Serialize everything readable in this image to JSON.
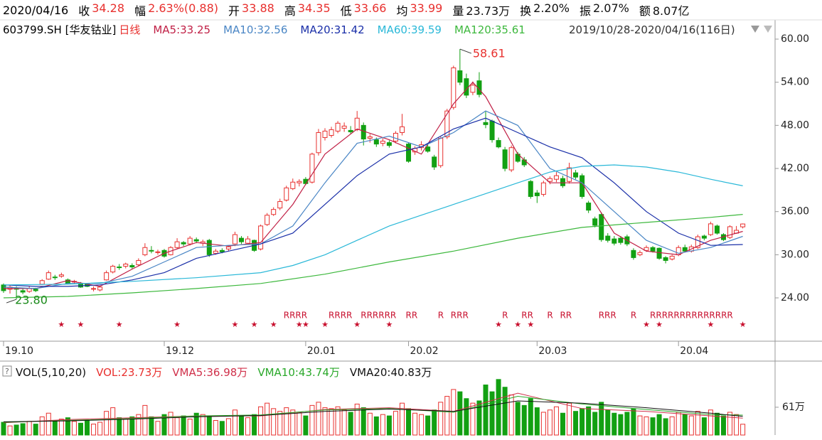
{
  "header": {
    "date": "2020/04/16",
    "fields": [
      {
        "label": "收",
        "value": "34.28",
        "up": true
      },
      {
        "label": "幅",
        "value": "2.63%(0.88)",
        "up": true
      },
      {
        "label": "开",
        "value": "33.88",
        "up": true
      },
      {
        "label": "高",
        "value": "34.35",
        "up": true
      },
      {
        "label": "低",
        "value": "33.66",
        "up": true
      },
      {
        "label": "均",
        "value": "33.99",
        "up": true
      },
      {
        "label": "量",
        "value": "23.73万",
        "up": false
      },
      {
        "label": "换",
        "value": "2.20%",
        "up": false
      },
      {
        "label": "振",
        "value": "2.07%",
        "up": false
      },
      {
        "label": "额",
        "value": "8.07亿",
        "up": false
      }
    ]
  },
  "chart_data": {
    "type": "candlestick",
    "symbol": "603799.SH [华友钴业]",
    "period": "日线",
    "range": "2019/10/28-2020/04/16(116日)",
    "up_color": "#e8312f",
    "down_color": "#12a012",
    "ylim": [
      17.97,
      61.09
    ],
    "yticks": [
      {
        "value": 24,
        "label": "24.00"
      },
      {
        "value": 30,
        "label": "30.00"
      },
      {
        "value": 36,
        "label": "36.00"
      },
      {
        "value": 42,
        "label": "42.00"
      },
      {
        "value": 48,
        "label": "48.00"
      },
      {
        "value": 54,
        "label": "54.00"
      },
      {
        "value": 60,
        "label": "60.00"
      }
    ],
    "xticks": [
      {
        "value": 0,
        "label": "19.10"
      },
      {
        "value": 25,
        "label": "19.12"
      },
      {
        "value": 47,
        "label": "20.01"
      },
      {
        "value": 63,
        "label": "20.02"
      },
      {
        "value": 83,
        "label": "20.03"
      },
      {
        "value": 105,
        "label": "20.04"
      }
    ],
    "candles": [
      [
        25.8,
        26.0,
        24.7,
        25.0
      ],
      [
        25.2,
        25.8,
        24.6,
        25.5
      ],
      [
        25.3,
        25.6,
        23.8,
        25.2
      ],
      [
        25.0,
        25.3,
        24.5,
        24.8
      ],
      [
        24.9,
        25.6,
        24.7,
        25.3
      ],
      [
        25.2,
        25.4,
        24.8,
        25.0
      ],
      [
        25.9,
        26.6,
        25.8,
        26.4
      ],
      [
        26.6,
        27.8,
        26.5,
        27.5
      ],
      [
        26.9,
        27.2,
        26.5,
        26.8
      ],
      [
        27.0,
        27.5,
        26.8,
        27.2
      ],
      [
        26.5,
        26.7,
        25.9,
        26.0
      ],
      [
        26.2,
        26.5,
        25.9,
        26.3
      ],
      [
        26.0,
        26.2,
        25.4,
        25.5
      ],
      [
        25.9,
        26.0,
        25.5,
        25.6
      ],
      [
        25.2,
        25.6,
        24.9,
        25.3
      ],
      [
        25.1,
        25.7,
        24.9,
        25.5
      ],
      [
        26.5,
        27.8,
        26.4,
        27.5
      ],
      [
        27.6,
        28.6,
        27.4,
        28.4
      ],
      [
        28.3,
        28.7,
        27.9,
        28.2
      ],
      [
        28.4,
        28.9,
        28.1,
        28.7
      ],
      [
        28.5,
        28.8,
        28.0,
        28.3
      ],
      [
        28.6,
        29.5,
        28.4,
        29.2
      ],
      [
        30.0,
        31.6,
        29.8,
        31.0
      ],
      [
        30.6,
        31.2,
        30.2,
        30.5
      ],
      [
        30.3,
        30.7,
        30.0,
        30.4
      ],
      [
        30.6,
        30.8,
        29.6,
        29.8
      ],
      [
        30.0,
        31.2,
        29.9,
        31.0
      ],
      [
        31.0,
        32.3,
        30.8,
        31.8
      ],
      [
        31.7,
        31.9,
        31.2,
        31.5
      ],
      [
        31.5,
        32.6,
        31.3,
        32.3
      ],
      [
        32.1,
        32.4,
        31.6,
        31.9
      ],
      [
        31.6,
        32.1,
        31.2,
        31.8
      ],
      [
        32.0,
        32.2,
        29.7,
        30.0
      ],
      [
        30.2,
        30.8,
        30.0,
        30.5
      ],
      [
        30.6,
        30.9,
        30.2,
        30.4
      ],
      [
        30.8,
        31.3,
        30.5,
        31.1
      ],
      [
        31.5,
        33.2,
        31.2,
        32.8
      ],
      [
        32.3,
        32.6,
        31.5,
        31.8
      ],
      [
        31.6,
        32.6,
        31.4,
        32.2
      ],
      [
        32.0,
        32.1,
        30.4,
        30.6
      ],
      [
        30.8,
        34.2,
        30.6,
        34.0
      ],
      [
        34.2,
        35.8,
        34.0,
        35.5
      ],
      [
        35.6,
        36.6,
        35.4,
        36.3
      ],
      [
        36.5,
        37.8,
        36.2,
        37.4
      ],
      [
        37.6,
        39.6,
        37.4,
        39.3
      ],
      [
        39.2,
        40.6,
        39.0,
        40.1
      ],
      [
        40.0,
        40.5,
        39.5,
        40.2
      ],
      [
        40.5,
        40.8,
        39.7,
        39.9
      ],
      [
        40.1,
        44.2,
        39.9,
        44.0
      ],
      [
        44.2,
        47.5,
        43.8,
        47.0
      ],
      [
        46.3,
        47.6,
        45.9,
        47.2
      ],
      [
        46.6,
        47.8,
        46.3,
        47.4
      ],
      [
        47.2,
        48.6,
        46.9,
        48.3
      ],
      [
        47.6,
        48.4,
        47.1,
        47.9
      ],
      [
        47.3,
        47.9,
        46.8,
        47.1
      ],
      [
        47.4,
        50.0,
        47.2,
        49.0
      ],
      [
        48.0,
        48.4,
        45.2,
        46.1
      ],
      [
        46.2,
        46.8,
        45.6,
        46.4
      ],
      [
        46.0,
        46.3,
        45.0,
        45.4
      ],
      [
        45.5,
        46.2,
        45.1,
        45.8
      ],
      [
        45.6,
        45.9,
        44.9,
        45.2
      ],
      [
        45.8,
        47.2,
        45.5,
        46.9
      ],
      [
        47.0,
        49.6,
        46.6,
        47.8
      ],
      [
        45.4,
        45.6,
        42.8,
        43.0
      ],
      [
        44.3,
        45.1,
        43.9,
        44.8
      ],
      [
        44.9,
        45.8,
        44.5,
        45.3
      ],
      [
        45.0,
        45.4,
        44.2,
        44.4
      ],
      [
        43.6,
        43.9,
        41.8,
        42.2
      ],
      [
        42.4,
        46.4,
        42.1,
        46.2
      ],
      [
        46.4,
        50.3,
        46.1,
        50.0
      ],
      [
        50.5,
        56.3,
        50.2,
        56.0
      ],
      [
        55.6,
        58.61,
        53.6,
        54.0
      ],
      [
        54.5,
        55.2,
        51.8,
        52.2
      ],
      [
        52.6,
        54.1,
        52.2,
        53.6
      ],
      [
        54.2,
        55.4,
        51.9,
        52.3
      ],
      [
        48.4,
        49.9,
        47.6,
        48.1
      ],
      [
        48.6,
        48.8,
        45.6,
        46.0
      ],
      [
        45.9,
        46.3,
        44.8,
        45.0
      ],
      [
        44.6,
        45.0,
        41.6,
        42.0
      ],
      [
        41.8,
        45.2,
        41.5,
        44.9
      ],
      [
        44.0,
        44.3,
        42.8,
        43.0
      ],
      [
        43.2,
        43.6,
        42.2,
        42.5
      ],
      [
        40.2,
        40.4,
        37.8,
        38.1
      ],
      [
        38.6,
        39.0,
        37.2,
        38.2
      ],
      [
        38.4,
        40.3,
        38.1,
        40.0
      ],
      [
        40.2,
        40.9,
        39.8,
        40.6
      ],
      [
        40.5,
        41.5,
        40.1,
        41.0
      ],
      [
        40.6,
        41.0,
        39.3,
        39.6
      ],
      [
        40.2,
        42.8,
        39.9,
        42.1
      ],
      [
        41.4,
        41.8,
        40.5,
        40.8
      ],
      [
        41.0,
        41.3,
        37.8,
        38.1
      ],
      [
        37.2,
        37.5,
        35.8,
        36.2
      ],
      [
        35.0,
        35.3,
        33.8,
        34.1
      ],
      [
        35.6,
        35.9,
        31.8,
        32.1
      ],
      [
        32.6,
        33.0,
        31.7,
        32.0
      ],
      [
        32.2,
        32.6,
        31.3,
        31.6
      ],
      [
        32.3,
        32.6,
        31.4,
        31.7
      ],
      [
        32.5,
        32.8,
        31.2,
        31.5
      ],
      [
        30.6,
        30.9,
        29.3,
        29.6
      ],
      [
        30.0,
        30.6,
        29.8,
        30.3
      ],
      [
        30.6,
        31.3,
        30.4,
        31.0
      ],
      [
        31.0,
        31.2,
        30.3,
        30.5
      ],
      [
        30.9,
        31.0,
        29.3,
        29.5
      ],
      [
        29.6,
        29.8,
        28.8,
        29.2
      ],
      [
        29.4,
        30.0,
        29.2,
        29.8
      ],
      [
        30.0,
        31.3,
        29.8,
        31.0
      ],
      [
        31.0,
        31.4,
        30.3,
        30.5
      ],
      [
        30.5,
        31.4,
        30.3,
        31.1
      ],
      [
        31.0,
        32.8,
        30.8,
        32.5
      ],
      [
        32.6,
        32.8,
        32.0,
        32.3
      ],
      [
        32.8,
        34.6,
        32.6,
        34.3
      ],
      [
        34.0,
        34.2,
        32.8,
        33.0
      ],
      [
        32.8,
        33.0,
        31.9,
        32.1
      ],
      [
        32.4,
        34.1,
        32.2,
        33.9
      ],
      [
        33.0,
        34.0,
        32.9,
        33.4
      ],
      [
        33.88,
        34.35,
        33.66,
        34.28
      ]
    ],
    "lines": [
      {
        "name": "MA5:33.25",
        "color": "#c01f45",
        "x": [
          0,
          5,
          10,
          15,
          20,
          25,
          30,
          35,
          40,
          45,
          50,
          55,
          60,
          65,
          70,
          73,
          75,
          80,
          85,
          90,
          95,
          100,
          105,
          110,
          115
        ],
        "values": [
          25.3,
          25.3,
          26.4,
          25.6,
          28.0,
          30.2,
          31.7,
          31.2,
          31.7,
          37.0,
          44.0,
          47.5,
          46.0,
          44.0,
          51.0,
          54.0,
          52.0,
          44.0,
          40.0,
          40.0,
          33.0,
          30.5,
          30.0,
          32.0,
          33.25
        ]
      },
      {
        "name": "MA10:32.56",
        "color": "#4a86c5",
        "x": [
          0,
          5,
          10,
          15,
          20,
          25,
          30,
          35,
          40,
          45,
          50,
          55,
          60,
          65,
          70,
          75,
          80,
          85,
          90,
          95,
          100,
          105,
          110,
          115
        ],
        "values": [
          25.5,
          25.3,
          26.0,
          26.0,
          27.0,
          29.0,
          31.0,
          31.3,
          31.5,
          34.0,
          40.0,
          45.5,
          46.5,
          45.0,
          47.0,
          50.0,
          48.0,
          42.0,
          40.0,
          36.0,
          32.0,
          30.2,
          31.0,
          32.56
        ]
      },
      {
        "name": "MA20:31.42",
        "color": "#1a2fa8",
        "x": [
          0,
          5,
          10,
          15,
          20,
          25,
          30,
          35,
          40,
          45,
          50,
          55,
          60,
          65,
          70,
          75,
          80,
          85,
          90,
          95,
          100,
          105,
          110,
          115
        ],
        "values": [
          25.8,
          25.6,
          25.6,
          25.8,
          26.5,
          27.5,
          29.5,
          30.5,
          31.5,
          33.0,
          37.0,
          41.0,
          44.0,
          45.0,
          47.5,
          49.0,
          47.0,
          45.0,
          43.5,
          40.0,
          36.0,
          33.0,
          31.3,
          31.42
        ]
      },
      {
        "name": "MA60:39.59",
        "color": "#2ab8d8",
        "x": [
          0,
          10,
          20,
          30,
          40,
          45,
          50,
          55,
          60,
          65,
          70,
          75,
          80,
          85,
          90,
          95,
          100,
          105,
          110,
          115
        ],
        "values": [
          25.8,
          25.9,
          26.3,
          26.8,
          27.5,
          28.5,
          30.0,
          32.0,
          34.0,
          35.5,
          37.0,
          38.5,
          40.0,
          41.5,
          42.3,
          42.5,
          42.2,
          41.5,
          40.5,
          39.59
        ]
      },
      {
        "name": "MA120:35.61",
        "color": "#3db83d",
        "x": [
          0,
          10,
          20,
          30,
          40,
          50,
          60,
          70,
          80,
          90,
          100,
          110,
          115
        ],
        "values": [
          24.0,
          24.2,
          24.7,
          25.3,
          26.0,
          27.3,
          29.0,
          30.5,
          32.3,
          33.8,
          34.5,
          35.2,
          35.61
        ]
      }
    ],
    "max_label": {
      "x": 71,
      "value": 58.61
    },
    "min_label": {
      "x": 2,
      "value": 23.8,
      "label": "23.80"
    },
    "signal_color": "#c8102e",
    "stars": [
      {
        "x": 9,
        "label": "★"
      },
      {
        "x": 12,
        "label": "★"
      },
      {
        "x": 18,
        "label": "★"
      },
      {
        "x": 27,
        "label": "★"
      },
      {
        "x": 36,
        "label": "★"
      },
      {
        "x": 39,
        "label": "★"
      },
      {
        "x": 42,
        "label": "★"
      },
      {
        "x": 46,
        "label": "★"
      },
      {
        "x": 47,
        "label": "★"
      },
      {
        "x": 50,
        "label": "★"
      },
      {
        "x": 55,
        "label": "★"
      },
      {
        "x": 60,
        "label": "★"
      },
      {
        "x": 77,
        "label": "★"
      },
      {
        "x": 80,
        "label": "★"
      },
      {
        "x": 82,
        "label": "★"
      },
      {
        "x": 100,
        "label": "★"
      },
      {
        "x": 102,
        "label": "★"
      },
      {
        "x": 110,
        "label": "★"
      },
      {
        "x": 115,
        "label": "★"
      }
    ],
    "r_marks": [
      {
        "x": 44,
        "label": "RRRR"
      },
      {
        "x": 51,
        "label": "RRRR"
      },
      {
        "x": 56,
        "label": "RRRRRR"
      },
      {
        "x": 63,
        "label": "RR"
      },
      {
        "x": 68,
        "label": "R"
      },
      {
        "x": 70,
        "label": "RRR"
      },
      {
        "x": 78,
        "label": "R"
      },
      {
        "x": 81,
        "label": "RR"
      },
      {
        "x": 85,
        "label": "R"
      },
      {
        "x": 87,
        "label": "RR"
      },
      {
        "x": 93,
        "label": "RRR"
      },
      {
        "x": 98,
        "label": "R"
      },
      {
        "x": 101,
        "label": "RRRRRRRRRRRRRR"
      }
    ],
    "volume": {
      "title": "VOL(5,10,20)",
      "latest": "VOL:23.73万",
      "ylim": [
        0,
        128
      ],
      "yticks": [
        {
          "value": 61,
          "label": "61万"
        }
      ],
      "values": [
        28,
        20,
        22,
        25,
        30,
        24,
        40,
        48,
        30,
        35,
        38,
        30,
        26,
        32,
        24,
        28,
        52,
        60,
        38,
        35,
        40,
        45,
        65,
        40,
        30,
        45,
        50,
        38,
        42,
        35,
        48,
        45,
        40,
        32,
        30,
        36,
        55,
        42,
        38,
        45,
        62,
        70,
        58,
        52,
        60,
        55,
        50,
        42,
        65,
        72,
        60,
        58,
        62,
        55,
        50,
        68,
        60,
        48,
        40,
        45,
        42,
        52,
        70,
        58,
        48,
        45,
        42,
        55,
        72,
        85,
        100,
        95,
        80,
        70,
        75,
        110,
        95,
        122,
        105,
        88,
        72,
        65,
        80,
        60,
        50,
        55,
        62,
        48,
        70,
        52,
        58,
        62,
        50,
        72,
        55,
        48,
        45,
        50,
        58,
        42,
        40,
        38,
        45,
        36,
        40,
        50,
        45,
        42,
        52,
        38,
        55,
        48,
        42,
        50,
        45,
        23.73
      ],
      "lines": [
        {
          "name": "VMA5:36.98万",
          "color": "#d0304a",
          "x": [
            0,
            10,
            20,
            30,
            40,
            50,
            60,
            70,
            80,
            90,
            100,
            110,
            115
          ],
          "values": [
            27,
            34,
            38,
            42,
            42,
            56,
            60,
            52,
            92,
            58,
            52,
            42,
            36.98
          ]
        },
        {
          "name": "VMA10:43.74万",
          "color": "#2aa82a",
          "x": [
            0,
            10,
            20,
            30,
            40,
            50,
            60,
            70,
            80,
            90,
            100,
            110,
            115
          ],
          "values": [
            28,
            32,
            36,
            42,
            44,
            55,
            58,
            50,
            85,
            68,
            56,
            45,
            43.74
          ]
        },
        {
          "name": "VMA20:40.83万",
          "color": "#111111",
          "x": [
            0,
            10,
            20,
            30,
            40,
            50,
            60,
            70,
            80,
            90,
            100,
            110,
            115
          ],
          "values": [
            29,
            31,
            35,
            40,
            43,
            52,
            57,
            52,
            75,
            70,
            60,
            48,
            40.83
          ]
        }
      ]
    }
  }
}
